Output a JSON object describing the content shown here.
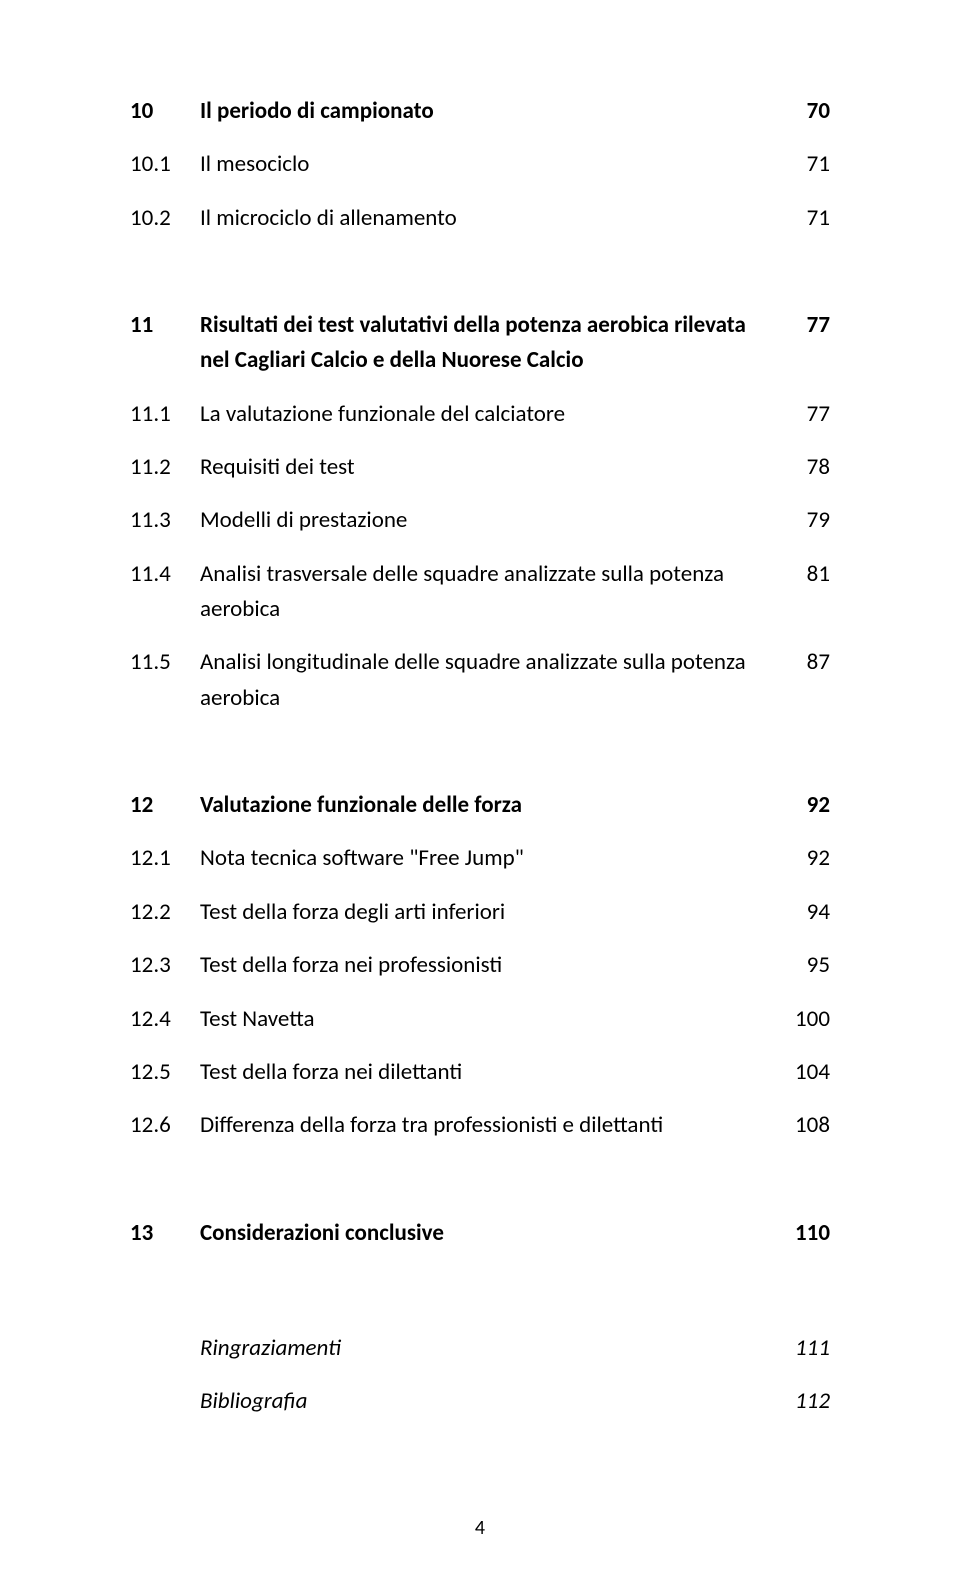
{
  "colors": {
    "text": "#000000",
    "background": "#ffffff"
  },
  "typography": {
    "fontFamily": "Calibri, 'Segoe UI', Arial, sans-serif",
    "baseFontSize": 23,
    "lineHeight": 1.45
  },
  "layout": {
    "pageWidth": 960,
    "pageHeight": 1594,
    "colNumWidth": 70,
    "colPageWidth": 56
  },
  "pageNumber": "4",
  "sections": [
    {
      "rows": [
        {
          "num": "10",
          "title": "Il periodo di campionato",
          "page": "70",
          "bold": true
        },
        {
          "num": "10.1",
          "title": "Il mesociclo",
          "page": "71",
          "bold": false
        },
        {
          "num": "10.2",
          "title": "Il microciclo di allenamento",
          "page": "71",
          "bold": false
        }
      ]
    },
    {
      "rows": [
        {
          "num": "11",
          "title": "Risultati dei test valutativi della potenza aerobica rilevata",
          "page": "77",
          "bold": true
        },
        {
          "num": "",
          "title": "nel Cagliari Calcio e della Nuorese Calcio",
          "page": "",
          "bold": true,
          "continuation": true
        },
        {
          "num": "11.1",
          "title": "La valutazione funzionale del calciatore",
          "page": "77",
          "bold": false
        },
        {
          "num": "11.2",
          "title": "Requisiti dei test",
          "page": "78",
          "bold": false
        },
        {
          "num": "11.3",
          "title": "Modelli di prestazione",
          "page": "79",
          "bold": false
        },
        {
          "num": "11.4",
          "title": "Analisi trasversale delle squadre analizzate sulla potenza",
          "page": "81",
          "bold": false
        },
        {
          "num": "",
          "title": "aerobica",
          "page": "",
          "bold": false,
          "continuation": true
        },
        {
          "num": "11.5",
          "title": "Analisi longitudinale delle squadre analizzate sulla potenza",
          "page": "87",
          "bold": false
        },
        {
          "num": "",
          "title": "aerobica",
          "page": "",
          "bold": false,
          "continuation": true
        }
      ]
    },
    {
      "rows": [
        {
          "num": "12",
          "title": "Valutazione funzionale delle forza",
          "page": "92",
          "bold": true
        },
        {
          "num": "12.1",
          "title": "Nota tecnica software \"Free Jump\"",
          "page": "92",
          "bold": false
        },
        {
          "num": "12.2",
          "title": "Test della forza degli arti inferiori",
          "page": "94",
          "bold": false
        },
        {
          "num": "12.3",
          "title": "Test della forza nei professionisti",
          "page": "95",
          "bold": false
        },
        {
          "num": "12.4",
          "title": "Test Navetta",
          "page": "100",
          "bold": false
        },
        {
          "num": "12.5",
          "title": "Test della forza nei dilettanti",
          "page": "104",
          "bold": false
        },
        {
          "num": "12.6",
          "title": "Differenza della forza tra professionisti e dilettanti",
          "page": "108",
          "bold": false
        }
      ]
    },
    {
      "rows": [
        {
          "num": "13",
          "title": "Considerazioni conclusive",
          "page": "110",
          "bold": true
        }
      ]
    },
    {
      "rows": [
        {
          "num": "",
          "title": "Ringraziamenti",
          "page": "111",
          "bold": false,
          "italic": true
        },
        {
          "num": "",
          "title": "Bibliografia",
          "page": "112",
          "bold": false,
          "italic": true
        }
      ]
    }
  ]
}
